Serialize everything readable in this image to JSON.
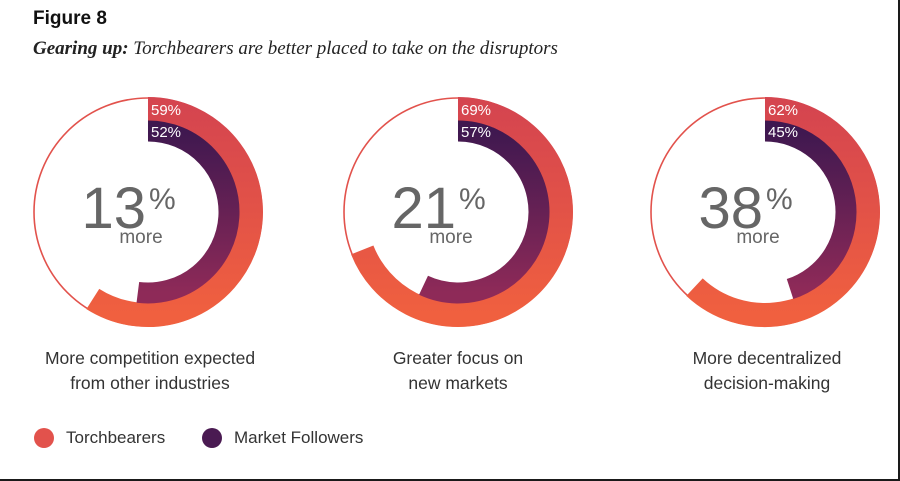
{
  "figure_label": "Figure 8",
  "subtitle": {
    "bold": "Gearing up:",
    "rest": "Torchbearers are better placed to take on the disruptors"
  },
  "colors": {
    "torchbearers": "#e2524c",
    "market_followers": "#4a1a52",
    "center_text": "#666666"
  },
  "legend": [
    {
      "label": "Torchbearers",
      "color": "#e2524c"
    },
    {
      "label": "Market Followers",
      "color": "#4a1a52"
    }
  ],
  "chart_data": [
    {
      "type": "donut",
      "series": [
        {
          "name": "Torchbearers",
          "value": 59,
          "label": "59%"
        },
        {
          "name": "Market Followers",
          "value": 52,
          "label": "52%"
        }
      ],
      "center_number": "13",
      "center_unit": "%",
      "center_sub": "more",
      "caption_lines": [
        "More competition expected",
        "from other industries"
      ]
    },
    {
      "type": "donut",
      "series": [
        {
          "name": "Torchbearers",
          "value": 69,
          "label": "69%"
        },
        {
          "name": "Market Followers",
          "value": 57,
          "label": "57%"
        }
      ],
      "center_number": "21",
      "center_unit": "%",
      "center_sub": "more",
      "caption_lines": [
        "Greater focus on",
        "new markets"
      ]
    },
    {
      "type": "donut",
      "series": [
        {
          "name": "Torchbearers",
          "value": 62,
          "label": "62%"
        },
        {
          "name": "Market Followers",
          "value": 45,
          "label": "45%"
        }
      ],
      "center_number": "38",
      "center_unit": "%",
      "center_sub": "more",
      "caption_lines": [
        "More decentralized",
        "decision-making"
      ]
    }
  ]
}
